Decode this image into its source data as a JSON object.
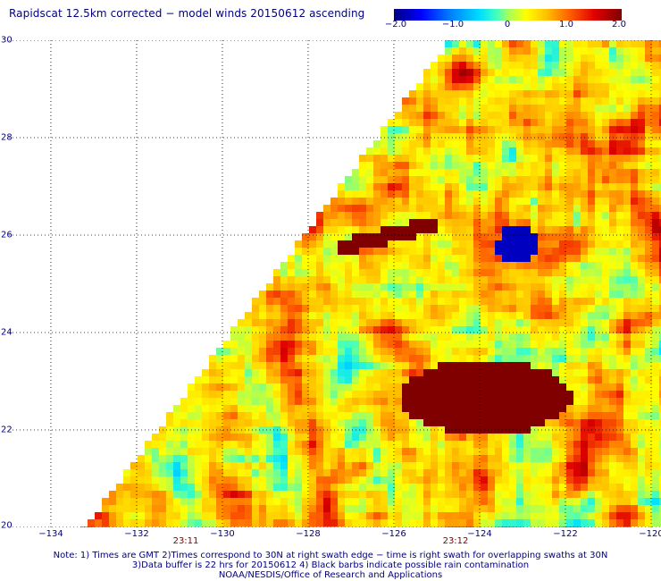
{
  "title": "Rapidscat 12.5km corrected − model winds 20150612 ascending",
  "colorbar": {
    "ticks": [
      "−2.0",
      "−1.0",
      "0",
      "1.0",
      "2.0"
    ],
    "tick_values": [
      -2.0,
      -1.0,
      0,
      1.0,
      2.0
    ]
  },
  "lat_labels": [
    "30",
    "28",
    "26",
    "24",
    "22",
    "20"
  ],
  "lat_values": [
    30,
    28,
    26,
    24,
    22,
    20
  ],
  "lon_labels": [
    "−134",
    "−132",
    "−130",
    "−128",
    "−126",
    "−124",
    "−122",
    "−120"
  ],
  "lon_values": [
    -134,
    -132,
    -130,
    -128,
    -126,
    -124,
    -122,
    -120
  ],
  "time_labels": [
    {
      "text": "23:11",
      "lon": -132.5
    },
    {
      "text": "23:12",
      "lon": -124.6
    }
  ],
  "notes": [
    "Note: 1) Times are GMT 2)Times correspond to 30N at right swath edge − time is right swath for overlapping swaths at 30N",
    "3)Data buffer is 22 hrs for 20150612 4) Black barbs indicate possible rain contamination",
    "NOAA/NESDIS/Office of Research and Applications"
  ]
}
